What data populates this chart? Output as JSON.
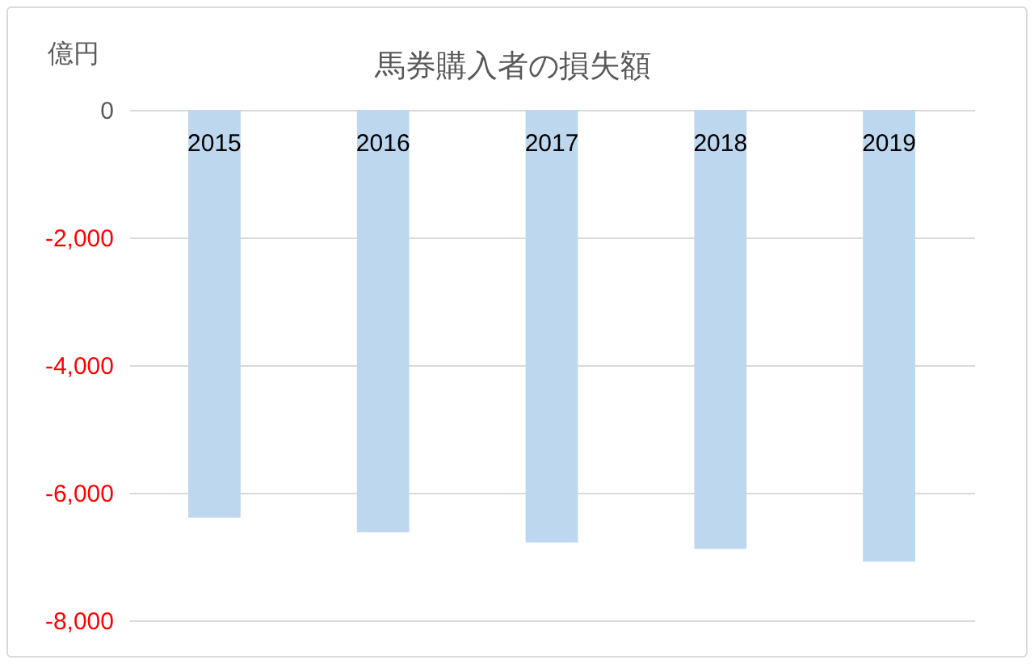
{
  "chart_data": {
    "type": "bar",
    "title": "馬券購入者の損失額",
    "ylabel": "億円",
    "categories": [
      "2015",
      "2016",
      "2017",
      "2018",
      "2019"
    ],
    "values": [
      -6390,
      -6620,
      -6780,
      -6880,
      -7080
    ],
    "color": "#bdd7ee",
    "ylim": [
      -8000,
      0
    ],
    "yticks": [
      {
        "value": -8000,
        "label": "-8,000"
      },
      {
        "value": -6000,
        "label": "-6,000"
      },
      {
        "value": -4000,
        "label": "-4,000"
      },
      {
        "value": -2000,
        "label": "-2,000"
      },
      0
    ],
    "grid": "y"
  }
}
